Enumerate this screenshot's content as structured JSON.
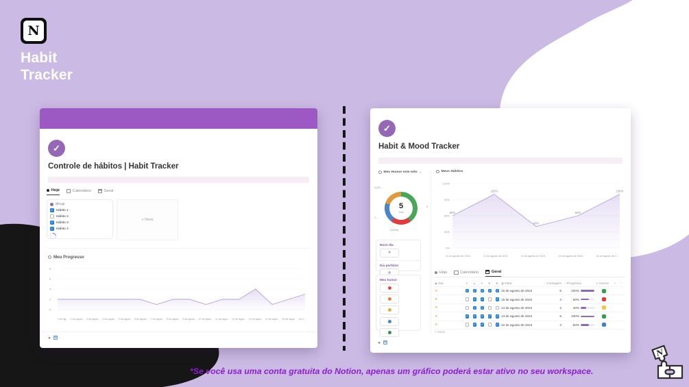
{
  "icons": {
    "check": "✓",
    "expand": "▸",
    "chevron_down": "⌄"
  },
  "brand": {
    "logo_letter": "N",
    "title_line1": "Habit",
    "title_line2": "Tracker"
  },
  "footnote": "*Se você usa uma conta gratuita do Notion, apenas um gráfico poderá estar ativo no seu workspace.",
  "left_card": {
    "title": "Controle de hábitos | Habit Tracker",
    "tabs": [
      {
        "label": "Hoje",
        "active": true
      },
      {
        "label": "Calendário",
        "active": false
      },
      {
        "label": "Geral",
        "active": false
      }
    ],
    "today_card": {
      "date_chip": "@hoje",
      "habits": [
        {
          "label": "Hábito 1",
          "checked": true
        },
        {
          "label": "Hábito 2",
          "checked": false
        },
        {
          "label": "Hábito 3",
          "checked": true
        },
        {
          "label": "Hábito 4",
          "checked": true
        }
      ]
    },
    "new_card_label": "+ Novo",
    "progress_title": "Meu Progresso"
  },
  "right_card": {
    "title": "Habit & Mood Tracker",
    "mood_title": "Meu Humor este mês",
    "habits_title": "Meus Hábitos",
    "donut_center": {
      "value": "5",
      "label": "Total"
    },
    "actions": {
      "novo_dia": "Novo dia",
      "dia_perfeito": "Dia perfeito!",
      "meu_humor": "Meu humor",
      "mood_colors": [
        "#dd4b4b",
        "#e0813c",
        "#ddab3e",
        "#4a84c9",
        "#3d8d4a"
      ]
    },
    "tabs": [
      {
        "label": "Hoje",
        "active": false
      },
      {
        "label": "Calendário",
        "active": false
      },
      {
        "label": "Geral",
        "active": true
      }
    ],
    "table": {
      "headers": {
        "dia": "Dia",
        "data": "Data",
        "contagem": "Contagem",
        "progresso": "Progresso",
        "humor": "Humor",
        "add": "+",
        "more": "⋯"
      },
      "habit_icon_cols": [
        "✦",
        "▴",
        "✶",
        "❖",
        "✚"
      ],
      "rows": [
        {
          "checks": [
            true,
            true,
            true,
            true,
            true
          ],
          "data": "16 de agosto de 2024",
          "contagem": "5",
          "progresso_label": "100%",
          "progresso": 100,
          "humor_color": "#2fa34c"
        },
        {
          "checks": [
            false,
            true,
            true,
            false,
            true
          ],
          "data": "15 de agosto de 2024",
          "contagem": "3",
          "progresso_label": "60%",
          "progresso": 60,
          "humor_color": "#e23b3b"
        },
        {
          "checks": [
            false,
            true,
            true,
            false,
            false
          ],
          "data": "14 de agosto de 2024",
          "contagem": "2",
          "progresso_label": "40%",
          "progresso": 40,
          "humor_color": "#f3c64a"
        },
        {
          "checks": [
            true,
            true,
            true,
            true,
            true
          ],
          "data": "13 de agosto de 2024",
          "contagem": "5",
          "progresso_label": "100%",
          "progresso": 100,
          "humor_color": "#2fa34c"
        },
        {
          "checks": [
            false,
            true,
            true,
            false,
            true
          ],
          "data": "12 de agosto de 2024",
          "contagem": "3",
          "progresso_label": "60%",
          "progresso": 60,
          "humor_color": "#3f7fd9"
        }
      ],
      "new_row_label": "+ Novo"
    }
  },
  "chart_data": [
    {
      "type": "line",
      "title": "Meu Progresso",
      "x": [
        "1 de ag...",
        "2 de agost...",
        "3 de agost...",
        "4 de agost...",
        "5 de agost...",
        "6 de agost...",
        "7 de agost...",
        "8 de agost...",
        "9 de agost...",
        "10 de agos...",
        "11 de agos...",
        "12 de agos...",
        "13 de agos...",
        "14 de agos...",
        "15 de agos...",
        "16 d..."
      ],
      "values": [
        2,
        2,
        2,
        2,
        2,
        2,
        1,
        2,
        2,
        1,
        2,
        2,
        4,
        1,
        2,
        3
      ],
      "ylim": [
        0,
        8
      ],
      "yticks": [
        0,
        2,
        4,
        6,
        8
      ],
      "line_color": "#b3a0df",
      "legend": "none",
      "grid": true
    },
    {
      "type": "area",
      "title": "Meus Hábitos",
      "x": [
        "12 de agosto de 2024",
        "13 de agosto de 2024",
        "14 de agosto de 2024",
        "15 de agosto de 2024",
        "16 de agosto de 2..."
      ],
      "values": [
        60,
        100,
        40,
        60,
        100
      ],
      "point_labels": [
        "60%",
        "100%",
        "40%",
        "60%",
        "100%"
      ],
      "ylim": [
        0,
        120
      ],
      "yticks": [
        0,
        30,
        60,
        90,
        120
      ],
      "ytick_labels": [
        "0%",
        "30%",
        "60%",
        "90%",
        "120%"
      ],
      "line_color": "#b3a0df",
      "legend": "none",
      "grid": true
    },
    {
      "type": "pie",
      "title": "Meu Humor este mês",
      "total": 5,
      "center_value": "5",
      "center_label": "Total",
      "segments": [
        {
          "label": "2",
          "value": 2,
          "color": "#46a758"
        },
        {
          "label": "1 (20%)",
          "value": 1,
          "color": "#e23b3b"
        },
        {
          "label": "1...",
          "value": 1,
          "color": "#4a84c9"
        },
        {
          "label": "1 (20...",
          "value": 1,
          "color": "#e09a3c"
        }
      ]
    }
  ]
}
